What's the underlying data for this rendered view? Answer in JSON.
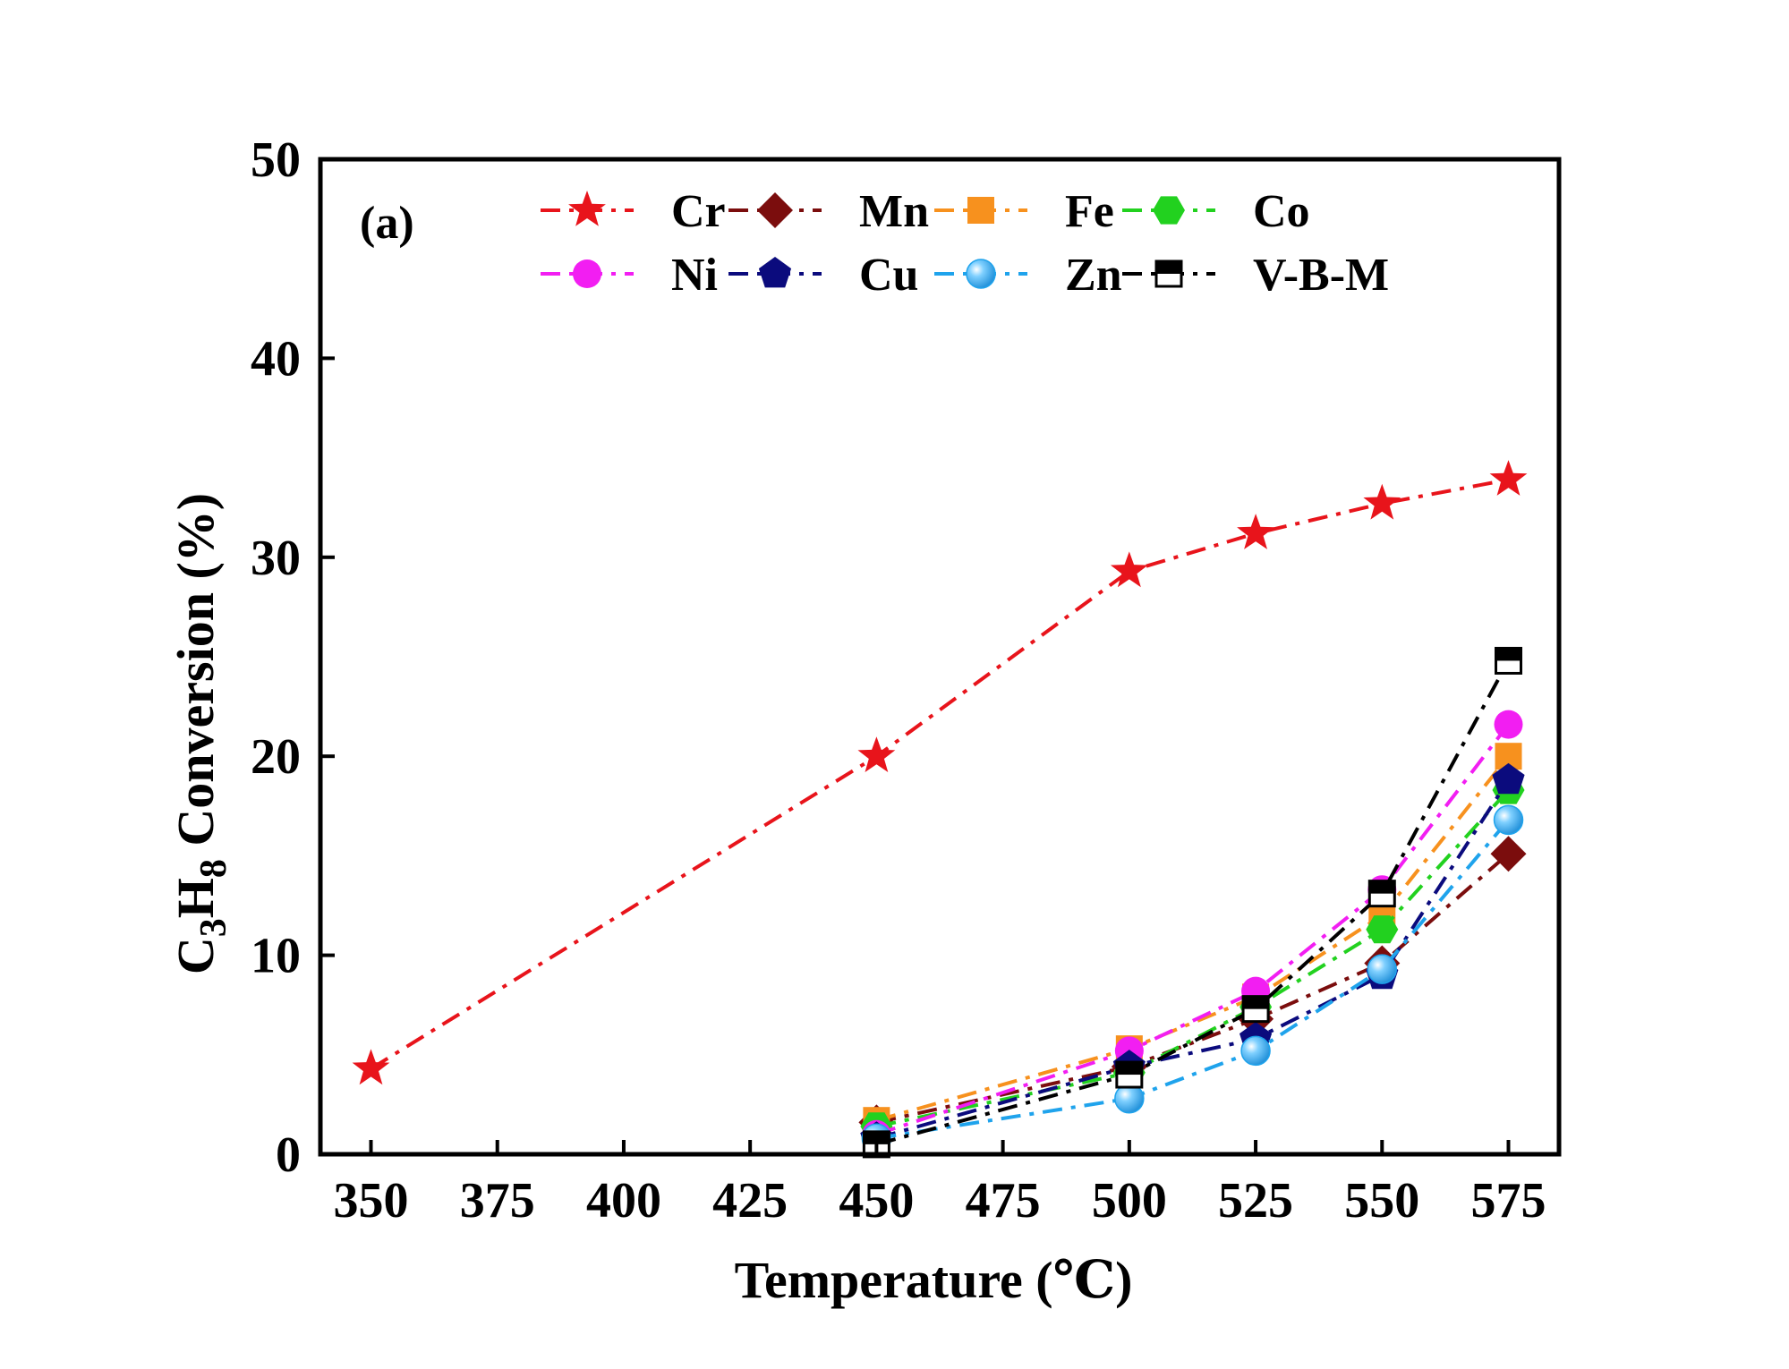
{
  "chart_data": {
    "type": "line",
    "panel_label": "(a)",
    "xlabel": "Temperature (℃)",
    "ylabel_parts": [
      "C",
      "3",
      "H",
      "8",
      " Conversion (%)"
    ],
    "xlim": [
      340,
      585
    ],
    "ylim": [
      0,
      50
    ],
    "x_ticks": [
      350,
      375,
      400,
      425,
      450,
      475,
      500,
      525,
      550,
      575
    ],
    "y_ticks": [
      0,
      10,
      20,
      30,
      40,
      50
    ],
    "legend_position": "top",
    "series": [
      {
        "name": "Cr",
        "color": "#e8141b",
        "marker": "star",
        "x": [
          350,
          450,
          500,
          525,
          550,
          575
        ],
        "values": [
          4.3,
          20.0,
          29.3,
          31.2,
          32.7,
          33.9
        ]
      },
      {
        "name": "Mn",
        "color": "#7b0d0d",
        "marker": "diamond",
        "x": [
          450,
          500,
          525,
          550,
          575
        ],
        "values": [
          1.6,
          4.4,
          6.8,
          9.6,
          15.1
        ]
      },
      {
        "name": "Fe",
        "color": "#f7911e",
        "marker": "square",
        "x": [
          450,
          500,
          525,
          550,
          575
        ],
        "values": [
          1.7,
          5.3,
          7.9,
          12.0,
          20.0
        ]
      },
      {
        "name": "Co",
        "color": "#22d11f",
        "marker": "hexagon",
        "x": [
          450,
          500,
          525,
          550,
          575
        ],
        "values": [
          1.4,
          4.1,
          7.4,
          11.3,
          18.3
        ]
      },
      {
        "name": "Ni",
        "color": "#f21ef2",
        "marker": "circle",
        "x": [
          450,
          500,
          525,
          550,
          575
        ],
        "values": [
          1.0,
          5.2,
          8.2,
          13.3,
          21.6
        ]
      },
      {
        "name": "Cu",
        "color": "#0b0b7d",
        "marker": "pentagon",
        "x": [
          450,
          500,
          525,
          550,
          575
        ],
        "values": [
          0.8,
          4.4,
          5.8,
          9.0,
          18.8
        ]
      },
      {
        "name": "Zn",
        "color": "#1fa3ec",
        "marker": "sphere",
        "x": [
          450,
          500,
          525,
          550,
          575
        ],
        "values": [
          0.8,
          2.8,
          5.2,
          9.3,
          16.8
        ]
      },
      {
        "name": "V-B-M",
        "color": "#000000",
        "marker": "halfsquare",
        "x": [
          450,
          500,
          525,
          550,
          575
        ],
        "values": [
          0.5,
          4.0,
          7.3,
          13.1,
          24.8
        ]
      }
    ]
  }
}
